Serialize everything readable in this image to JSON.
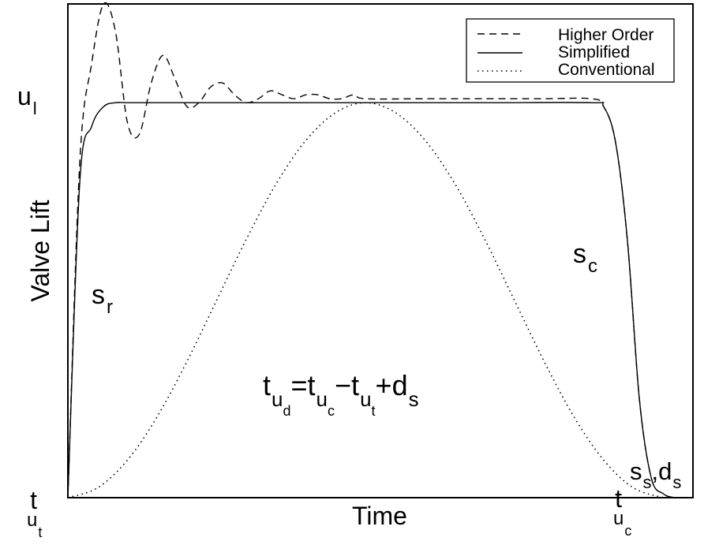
{
  "chart_data": {
    "type": "line",
    "title": "",
    "xlabel": "Time",
    "ylabel": "Valve Lift",
    "xlim": [
      0,
      1.05
    ],
    "ylim": [
      0,
      1.25
    ],
    "grid": false,
    "legend_position": "top-right",
    "axis_marks": {
      "y_top": {
        "main": "u",
        "sub": "l"
      },
      "x_start": {
        "main": "t",
        "sub": "u",
        "subsub": "t"
      },
      "x_end": {
        "main": "t",
        "sub": "u",
        "subsub": "c"
      }
    },
    "annotations": [
      {
        "id": "sr",
        "main": "s",
        "sub": "r"
      },
      {
        "id": "sc",
        "main": "s",
        "sub": "c"
      },
      {
        "id": "ss",
        "main": "s",
        "sub": "s",
        "sep": ",",
        "main2": "d",
        "sub2": "s"
      },
      {
        "id": "eq",
        "parts": [
          {
            "main": "t",
            "sub": "u",
            "subsub": "d"
          },
          {
            "op": "="
          },
          {
            "main": "t",
            "sub": "u",
            "subsub": "c"
          },
          {
            "op": "−"
          },
          {
            "main": "t",
            "sub": "u",
            "subsub": "t"
          },
          {
            "op": "+"
          },
          {
            "main": "d",
            "sub": "s"
          }
        ]
      }
    ],
    "series": [
      {
        "name": "Higher Order",
        "style": "dashed",
        "x": [
          0,
          0.02,
          0.04,
          0.06,
          0.08,
          0.1,
          0.12,
          0.14,
          0.16,
          0.18,
          0.2,
          0.22,
          0.24,
          0.26,
          0.28,
          0.3,
          0.32,
          0.34,
          0.36,
          0.38,
          0.4,
          0.42,
          0.44,
          0.46,
          0.48,
          0.5,
          0.6,
          0.7,
          0.8,
          0.88,
          0.9,
          0.92,
          0.94,
          0.96,
          0.98,
          1.0,
          1.02,
          1.04
        ],
        "values": [
          0,
          0.85,
          1.1,
          1.25,
          1.18,
          0.95,
          0.92,
          1.05,
          1.12,
          1.06,
          0.99,
          1.0,
          1.04,
          1.05,
          1.02,
          1.0,
          1.01,
          1.03,
          1.02,
          1.01,
          1.02,
          1.02,
          1.01,
          1.01,
          1.02,
          1.01,
          1.01,
          1.01,
          1.01,
          1.01,
          0.99,
          0.9,
          0.65,
          0.25,
          0.05,
          0.01,
          0.0,
          0.0
        ]
      },
      {
        "name": "Simplified",
        "style": "solid",
        "x": [
          0,
          0.02,
          0.04,
          0.06,
          0.08,
          0.1,
          0.15,
          0.3,
          0.5,
          0.7,
          0.88,
          0.9,
          0.92,
          0.94,
          0.96,
          0.98,
          1.0,
          1.02,
          1.04
        ],
        "values": [
          0,
          0.8,
          0.94,
          0.99,
          1.0,
          1.0,
          1.0,
          1.0,
          1.0,
          1.0,
          1.0,
          0.99,
          0.9,
          0.65,
          0.25,
          0.05,
          0.01,
          0.0,
          0.0
        ]
      },
      {
        "name": "Conventional",
        "style": "dotted",
        "x": [
          0,
          0.05,
          0.1,
          0.15,
          0.2,
          0.25,
          0.3,
          0.35,
          0.4,
          0.45,
          0.5,
          0.55,
          0.6,
          0.65,
          0.7,
          0.75,
          0.8,
          0.85,
          0.9,
          0.95,
          1.0
        ],
        "values": [
          0,
          0.025,
          0.095,
          0.205,
          0.345,
          0.5,
          0.655,
          0.795,
          0.905,
          0.975,
          1.0,
          0.975,
          0.905,
          0.795,
          0.655,
          0.5,
          0.345,
          0.205,
          0.095,
          0.025,
          0
        ]
      }
    ]
  }
}
